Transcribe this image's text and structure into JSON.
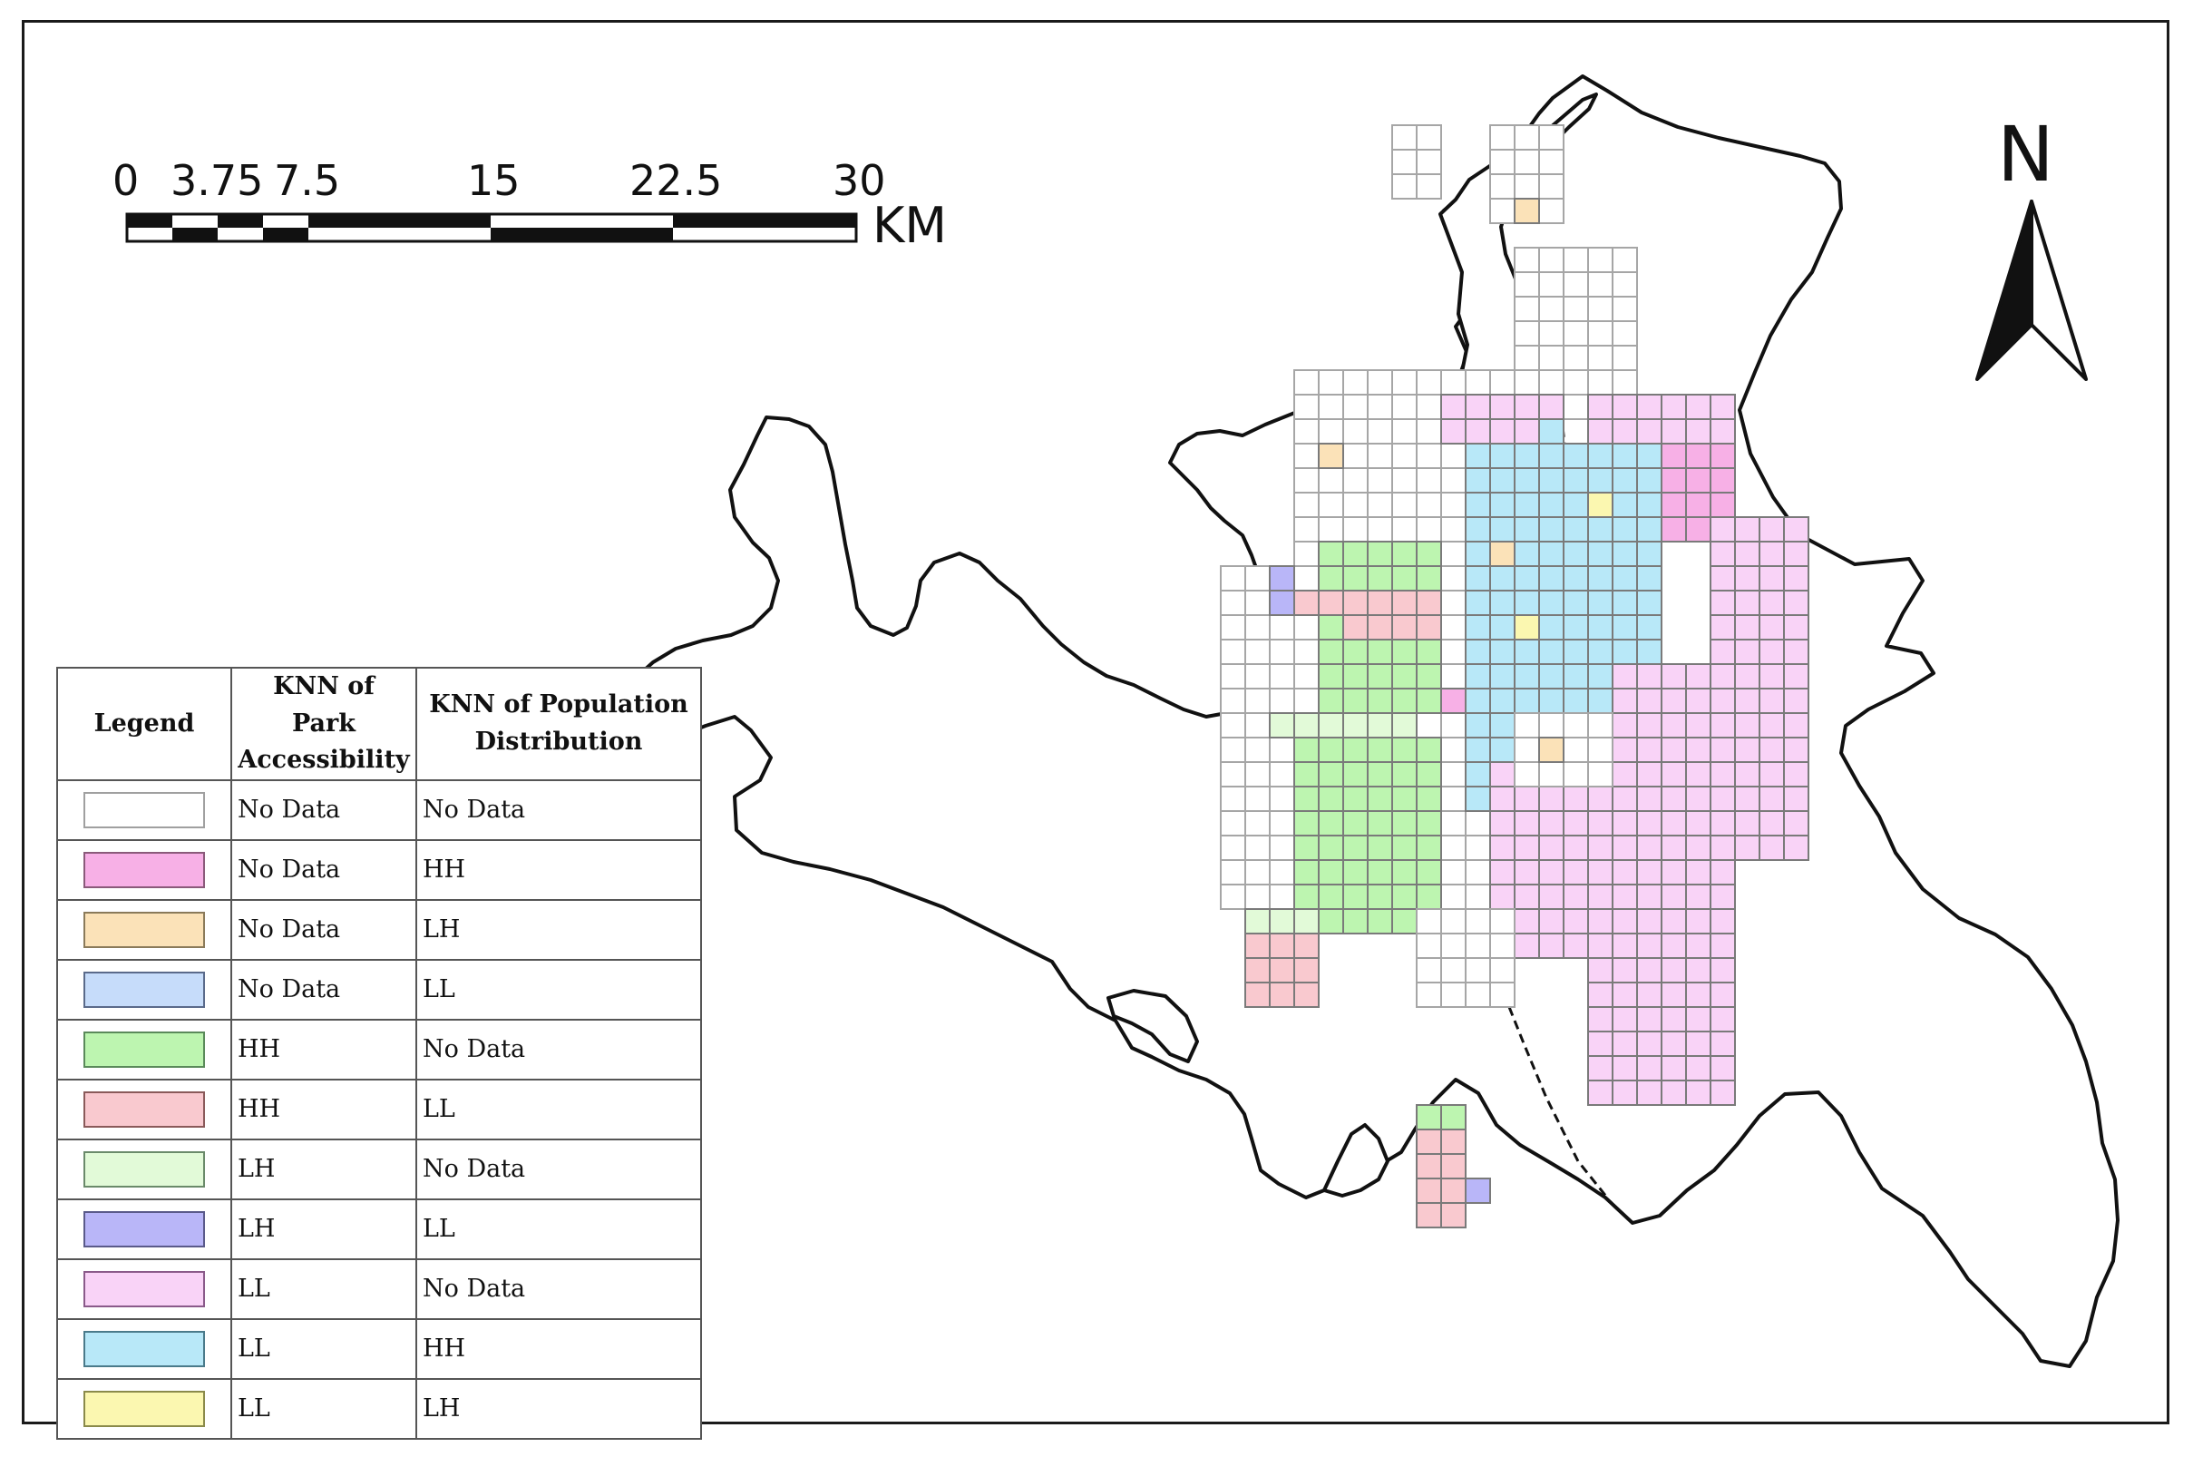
{
  "scale_bar": {
    "labels": [
      "0",
      "3.75",
      "7.5",
      "15",
      "22.5",
      "30"
    ],
    "unit": "KM"
  },
  "north_arrow": {
    "label": "N"
  },
  "legend": {
    "headers": {
      "legend": "Legend",
      "park": "KNN of Park Accessibility",
      "population": "KNN of Population Distribution"
    },
    "rows": [
      {
        "park": "No Data",
        "population": "No Data",
        "color": "#ffffff",
        "border": "#a0a0a0"
      },
      {
        "park": "No Data",
        "population": "HH",
        "color": "#f7b0e6",
        "border": "#8a5a7a"
      },
      {
        "park": "No Data",
        "population": "LH",
        "color": "#fbe2b8",
        "border": "#8a7a5a"
      },
      {
        "park": "No Data",
        "population": "LL",
        "color": "#c6dcfa",
        "border": "#5a6a8a"
      },
      {
        "park": "HH",
        "population": "No Data",
        "color": "#bdf5b0",
        "border": "#5a8a5a"
      },
      {
        "park": "HH",
        "population": "LL",
        "color": "#f9c9cf",
        "border": "#8a5a5a"
      },
      {
        "park": "LH",
        "population": "No Data",
        "color": "#e2fad8",
        "border": "#6a8a6a"
      },
      {
        "park": "LH",
        "population": "LL",
        "color": "#b9b6f8",
        "border": "#5a5a8a"
      },
      {
        "park": "LL",
        "population": "No Data",
        "color": "#f9d3f7",
        "border": "#8a5a8a"
      },
      {
        "park": "LL",
        "population": "HH",
        "color": "#b8e8f8",
        "border": "#4a7a8a"
      },
      {
        "park": "LL",
        "population": "LH",
        "color": "#fbf7b0",
        "border": "#8a8a4a"
      }
    ]
  }
}
